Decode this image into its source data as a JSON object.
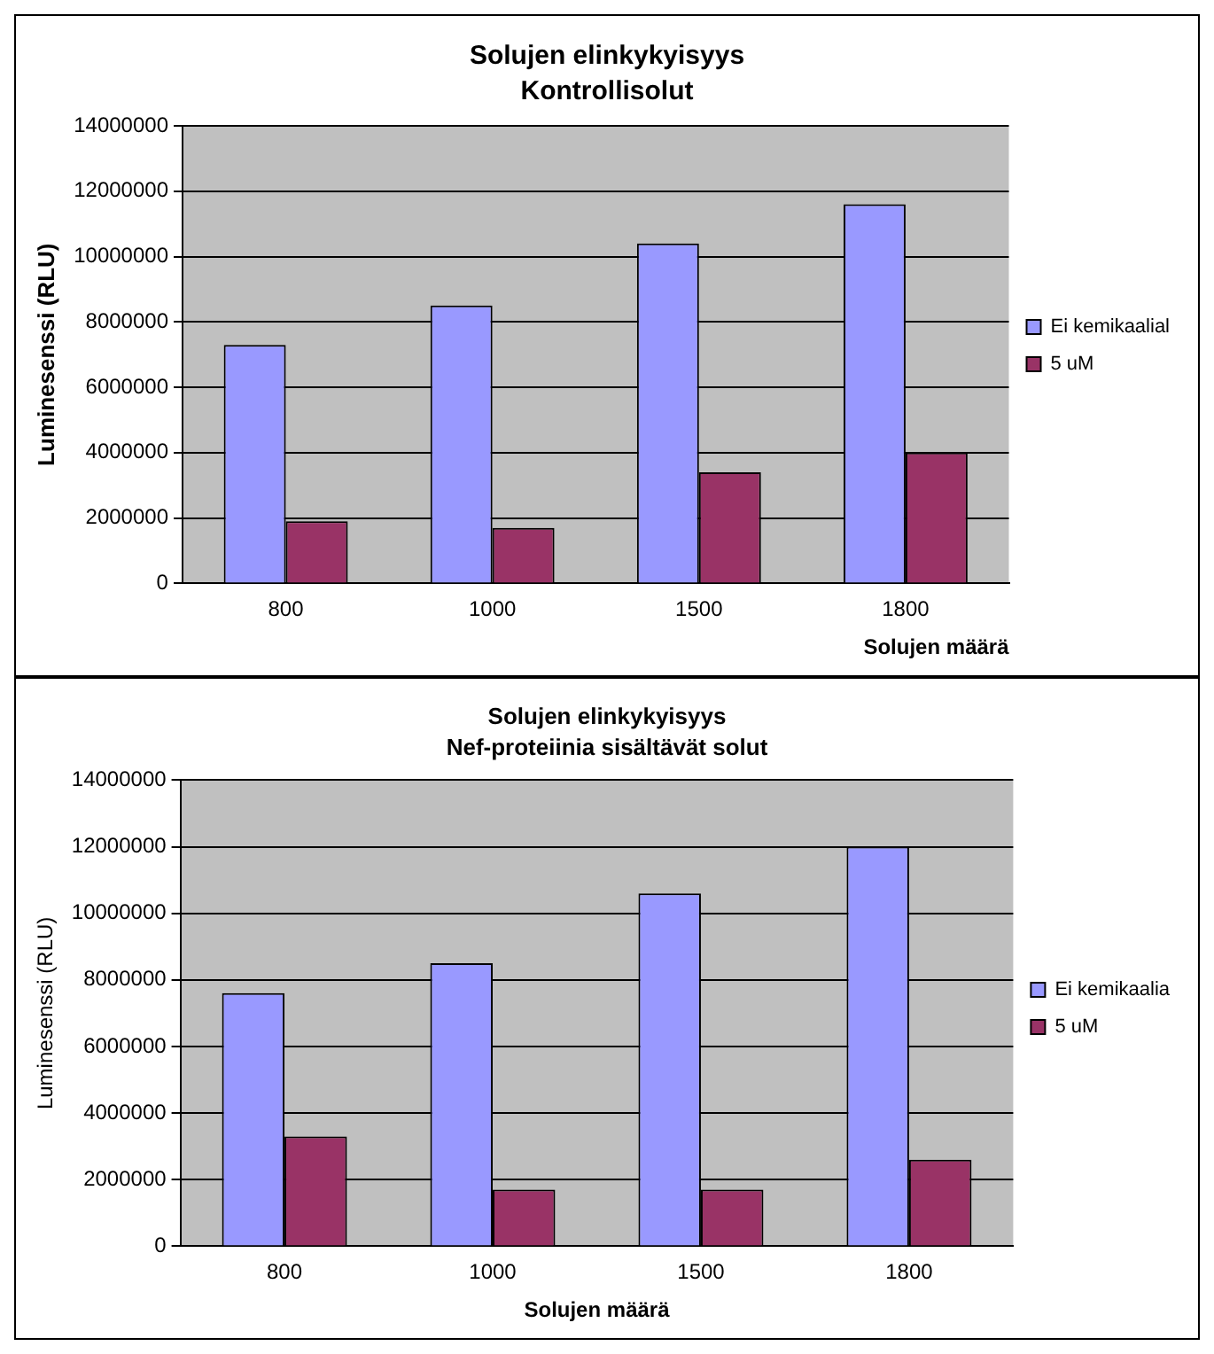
{
  "chart_data": [
    {
      "type": "bar",
      "title": "Solujen elinkykyisyys",
      "subtitle": "Kontrollisolut",
      "xlabel": "Solujen määrä",
      "ylabel": "Luminesenssi (RLU)",
      "categories": [
        "800",
        "1000",
        "1500",
        "1800"
      ],
      "series": [
        {
          "name": "Ei kemikaalial",
          "color": "#9999ff",
          "values": [
            7300000,
            8500000,
            10400000,
            11600000
          ]
        },
        {
          "name": "5 uM",
          "color": "#993366",
          "values": [
            1900000,
            1700000,
            3400000,
            4000000
          ]
        }
      ],
      "ylim": [
        0,
        14000000
      ],
      "yticks": [
        0,
        2000000,
        4000000,
        6000000,
        8000000,
        10000000,
        12000000,
        14000000
      ],
      "grid": "y",
      "legend": "right"
    },
    {
      "type": "bar",
      "title": "Solujen elinkykyisyys",
      "subtitle": "Nef-proteiinia sisältävät solut",
      "xlabel": "Solujen määrä",
      "ylabel": "Luminesenssi (RLU)",
      "categories": [
        "800",
        "1000",
        "1500",
        "1800"
      ],
      "series": [
        {
          "name": "Ei kemikaalia",
          "color": "#9999ff",
          "values": [
            7600000,
            8500000,
            10600000,
            12000000
          ]
        },
        {
          "name": "5 uM",
          "color": "#993366",
          "values": [
            3300000,
            1700000,
            1700000,
            2600000
          ]
        }
      ],
      "ylim": [
        0,
        14000000
      ],
      "yticks": [
        0,
        2000000,
        4000000,
        6000000,
        8000000,
        10000000,
        12000000,
        14000000
      ],
      "grid": "y",
      "legend": "right"
    }
  ]
}
